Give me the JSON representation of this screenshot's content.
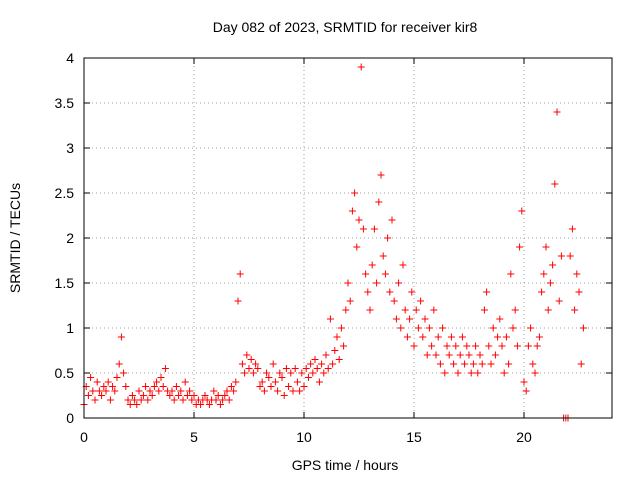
{
  "chart_data": {
    "type": "scatter",
    "title": "Day 082 of 2023, SRMTID for receiver kir8",
    "xlabel": "GPS time / hours",
    "ylabel": "SRMTID / TECUs",
    "xlim": [
      0,
      24
    ],
    "ylim": [
      0,
      4
    ],
    "xticks": [
      0,
      5,
      10,
      15,
      20
    ],
    "xtick_labels": [
      "0",
      "5",
      "10",
      "15",
      "20"
    ],
    "yticks": [
      0,
      0.5,
      1,
      1.5,
      2,
      2.5,
      3,
      3.5,
      4
    ],
    "ytick_labels": [
      "0",
      "0.5",
      "1",
      "1.5",
      "2",
      "2.5",
      "3",
      "3.5",
      "4"
    ],
    "grid": true,
    "marker": "+",
    "color": "#ff0000",
    "series": [
      {
        "name": "SRMTID",
        "x": [
          0.0,
          0.1,
          0.2,
          0.3,
          0.4,
          0.5,
          0.6,
          0.7,
          0.8,
          0.9,
          1.0,
          1.1,
          1.2,
          1.3,
          1.4,
          1.5,
          1.6,
          1.7,
          1.8,
          1.9,
          2.0,
          2.1,
          2.2,
          2.3,
          2.4,
          2.5,
          2.6,
          2.7,
          2.8,
          2.9,
          3.0,
          3.1,
          3.2,
          3.3,
          3.4,
          3.5,
          3.6,
          3.7,
          3.8,
          3.9,
          4.0,
          4.1,
          4.2,
          4.3,
          4.4,
          4.5,
          4.6,
          4.7,
          4.8,
          4.9,
          5.0,
          5.1,
          5.2,
          5.3,
          5.4,
          5.5,
          5.6,
          5.7,
          5.8,
          5.9,
          6.0,
          6.1,
          6.2,
          6.3,
          6.4,
          6.5,
          6.6,
          6.7,
          6.8,
          6.9,
          7.0,
          7.1,
          7.2,
          7.3,
          7.4,
          7.5,
          7.6,
          7.7,
          7.8,
          7.9,
          8.0,
          8.1,
          8.2,
          8.3,
          8.4,
          8.5,
          8.6,
          8.7,
          8.8,
          8.9,
          9.0,
          9.1,
          9.2,
          9.3,
          9.4,
          9.5,
          9.6,
          9.7,
          9.8,
          9.9,
          10.0,
          10.1,
          10.2,
          10.3,
          10.4,
          10.5,
          10.6,
          10.7,
          10.8,
          10.9,
          11.0,
          11.1,
          11.2,
          11.3,
          11.4,
          11.5,
          11.6,
          11.7,
          11.8,
          11.9,
          12.0,
          12.1,
          12.2,
          12.3,
          12.4,
          12.5,
          12.6,
          12.7,
          12.8,
          12.9,
          13.0,
          13.1,
          13.2,
          13.3,
          13.4,
          13.5,
          13.6,
          13.7,
          13.8,
          13.9,
          14.0,
          14.1,
          14.2,
          14.3,
          14.4,
          14.5,
          14.6,
          14.7,
          14.8,
          14.9,
          15.0,
          15.1,
          15.2,
          15.3,
          15.4,
          15.5,
          15.6,
          15.7,
          15.8,
          15.9,
          16.0,
          16.1,
          16.2,
          16.3,
          16.4,
          16.5,
          16.6,
          16.7,
          16.8,
          16.9,
          17.0,
          17.1,
          17.2,
          17.3,
          17.4,
          17.5,
          17.6,
          17.7,
          17.8,
          17.9,
          18.0,
          18.1,
          18.2,
          18.3,
          18.4,
          18.5,
          18.6,
          18.7,
          18.8,
          18.9,
          19.0,
          19.1,
          19.2,
          19.3,
          19.4,
          19.5,
          19.6,
          19.7,
          19.8,
          19.9,
          20.0,
          20.1,
          20.2,
          20.3,
          20.4,
          20.5,
          20.6,
          20.7,
          20.8,
          20.9,
          21.0,
          21.1,
          21.2,
          21.3,
          21.4,
          21.5,
          21.6,
          21.7,
          21.8,
          21.9,
          22.0,
          22.1,
          22.2,
          22.3,
          22.4,
          22.5,
          22.6,
          22.7
        ],
        "y": [
          0.15,
          0.35,
          0.25,
          0.45,
          0.3,
          0.2,
          0.4,
          0.3,
          0.25,
          0.35,
          0.3,
          0.4,
          0.2,
          0.35,
          0.3,
          0.45,
          0.6,
          0.9,
          0.5,
          0.35,
          0.2,
          0.15,
          0.25,
          0.2,
          0.15,
          0.3,
          0.2,
          0.25,
          0.35,
          0.2,
          0.3,
          0.25,
          0.35,
          0.4,
          0.3,
          0.45,
          0.35,
          0.55,
          0.3,
          0.25,
          0.3,
          0.2,
          0.35,
          0.25,
          0.3,
          0.2,
          0.4,
          0.25,
          0.3,
          0.2,
          0.25,
          0.15,
          0.2,
          0.15,
          0.2,
          0.25,
          0.2,
          0.15,
          0.2,
          0.3,
          0.2,
          0.25,
          0.15,
          0.2,
          0.25,
          0.3,
          0.2,
          0.35,
          0.3,
          0.4,
          1.3,
          1.6,
          0.6,
          0.5,
          0.7,
          0.55,
          0.65,
          0.5,
          0.6,
          0.55,
          0.35,
          0.4,
          0.3,
          0.5,
          0.45,
          0.35,
          0.6,
          0.4,
          0.3,
          0.5,
          0.45,
          0.25,
          0.55,
          0.35,
          0.5,
          0.3,
          0.55,
          0.4,
          0.3,
          0.5,
          0.35,
          0.55,
          0.45,
          0.6,
          0.5,
          0.65,
          0.55,
          0.4,
          0.6,
          0.5,
          0.7,
          0.55,
          1.1,
          0.6,
          0.75,
          0.9,
          0.65,
          1.0,
          0.8,
          1.2,
          1.5,
          1.3,
          2.3,
          2.5,
          1.9,
          2.2,
          3.9,
          2.1,
          1.6,
          1.4,
          1.2,
          1.7,
          2.1,
          1.5,
          2.4,
          2.7,
          1.8,
          1.6,
          2.0,
          1.4,
          2.2,
          1.3,
          1.1,
          1.5,
          1.0,
          1.7,
          1.2,
          0.9,
          1.1,
          1.4,
          0.8,
          1.2,
          1.0,
          1.3,
          0.9,
          1.1,
          0.7,
          1.0,
          0.8,
          1.2,
          0.7,
          0.9,
          0.6,
          1.0,
          0.5,
          0.8,
          0.7,
          0.9,
          0.6,
          0.8,
          0.5,
          0.7,
          0.9,
          0.6,
          0.8,
          0.7,
          0.5,
          0.6,
          0.8,
          0.5,
          0.7,
          0.6,
          1.2,
          1.4,
          0.8,
          0.6,
          1.0,
          0.7,
          0.9,
          1.1,
          0.8,
          0.5,
          0.9,
          0.6,
          1.6,
          1.0,
          1.2,
          0.8,
          1.9,
          2.3,
          0.4,
          0.3,
          0.8,
          1.0,
          0.6,
          0.5,
          0.8,
          0.9,
          1.4,
          1.6,
          1.9,
          1.2,
          1.5,
          1.7,
          2.6,
          3.4,
          1.3,
          1.8,
          0.0,
          0.0,
          0.0,
          1.8,
          2.1,
          1.2,
          1.6,
          1.4,
          0.6,
          1.0
        ]
      }
    ]
  }
}
